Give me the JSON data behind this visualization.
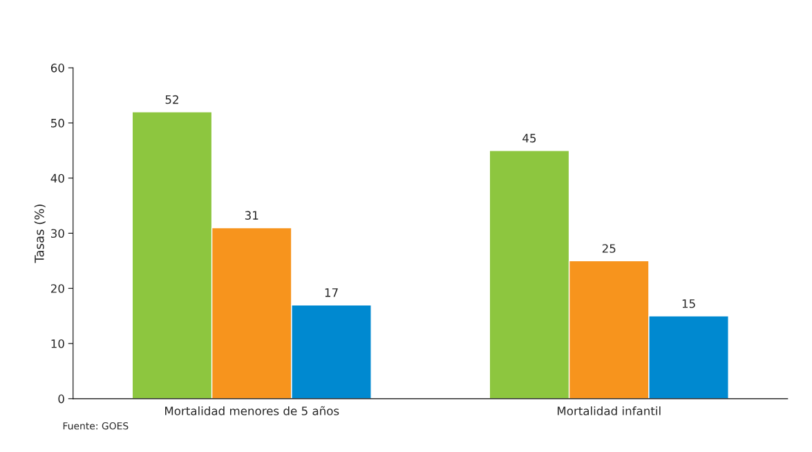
{
  "chart_data": {
    "type": "bar",
    "ylabel": "Tasas (%)",
    "categories": [
      "Mortalidad menores de 5 años",
      "Mortalidad infantil"
    ],
    "series": [
      {
        "color": "#8dc63f",
        "values": [
          52,
          45
        ]
      },
      {
        "color": "#f7941d",
        "values": [
          31,
          25
        ]
      },
      {
        "color": "#0089d0",
        "values": [
          17,
          15
        ]
      }
    ],
    "ylim": [
      0,
      60
    ],
    "yticks": [
      0,
      10,
      20,
      30,
      40,
      50,
      60
    ],
    "grid": false,
    "data_labels": true,
    "annotations": [
      "Fuente: GOES"
    ]
  }
}
